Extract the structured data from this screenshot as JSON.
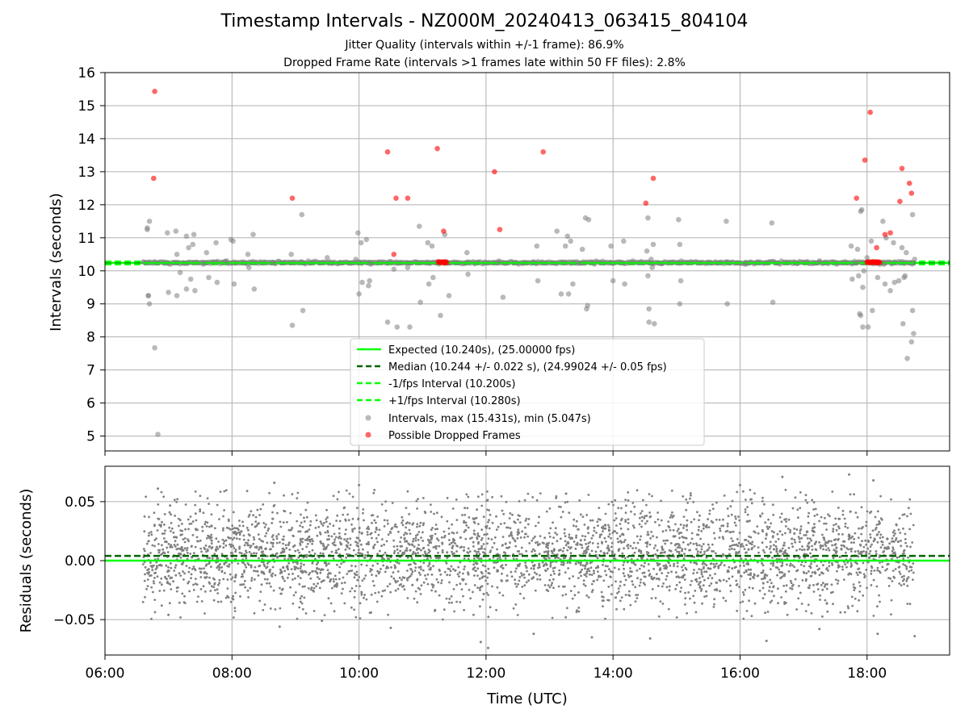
{
  "title": "Timestamp Intervals - NZ000M_20240413_063415_804104",
  "subtitle_lines": [
    "Jitter Quality (intervals within +/-1 frame): 86.9%",
    "Dropped Frame Rate (intervals >1 frames late within 50 FF files): 2.8%"
  ],
  "colors": {
    "expected": "#00ff00",
    "median": "#006400",
    "interval_points": "#808080",
    "dropped_points": "#ff0000",
    "grid": "#b0b0b0"
  },
  "chart_data": [
    {
      "type": "scatter",
      "panel": "intervals",
      "xlabel": "",
      "ylabel": "Intervals (seconds)",
      "xlim": [
        "06:00",
        "19:18"
      ],
      "ylim": [
        4.55,
        16.0
      ],
      "yticks": [
        5,
        6,
        7,
        8,
        9,
        10,
        11,
        12,
        13,
        14,
        15,
        16
      ],
      "grid": true,
      "lines": [
        {
          "name": "Expected (10.240s), (25.00000 fps)",
          "y": 10.24,
          "style": "solid",
          "color": "#00ff00"
        },
        {
          "name": "Median (10.244 +/- 0.022 s), (24.99024 +/- 0.05 fps)",
          "y": 10.244,
          "style": "dashed",
          "color": "#006400"
        },
        {
          "name": "-1/fps Interval (10.200s)",
          "y": 10.2,
          "style": "dashed",
          "color": "#00ff00"
        },
        {
          "name": "+1/fps Interval (10.280s)",
          "y": 10.28,
          "style": "dashed",
          "color": "#00ff00"
        }
      ],
      "series": [
        {
          "name": "Intervals, max (15.431s), min (5.047s)",
          "color": "#808080",
          "band": {
            "x_start": "06:36",
            "x_end": "18:44",
            "y": 10.25
          },
          "points": [
            [
              "06:40",
              11.25
            ],
            [
              "06:40",
              11.3
            ],
            [
              "06:41",
              9.25
            ],
            [
              "06:41",
              9.25
            ],
            [
              "06:42",
              11.5
            ],
            [
              "06:42",
              9.0
            ],
            [
              "06:47",
              7.67
            ],
            [
              "06:50",
              5.05
            ],
            [
              "06:59",
              11.15
            ],
            [
              "07:00",
              9.35
            ],
            [
              "07:07",
              11.2
            ],
            [
              "07:08",
              10.5
            ],
            [
              "07:08",
              9.25
            ],
            [
              "07:11",
              9.95
            ],
            [
              "07:17",
              11.05
            ],
            [
              "07:17",
              9.45
            ],
            [
              "07:19",
              10.7
            ],
            [
              "07:21",
              9.75
            ],
            [
              "07:23",
              10.8
            ],
            [
              "07:24",
              11.1
            ],
            [
              "07:25",
              9.4
            ],
            [
              "07:33",
              10.2
            ],
            [
              "07:36",
              10.55
            ],
            [
              "07:38",
              9.8
            ],
            [
              "07:45",
              10.85
            ],
            [
              "07:46",
              9.65
            ],
            [
              "07:55",
              10.3
            ],
            [
              "07:59",
              10.95
            ],
            [
              "08:01",
              10.9
            ],
            [
              "08:02",
              9.6
            ],
            [
              "08:15",
              10.5
            ],
            [
              "08:16",
              10.1
            ],
            [
              "08:20",
              11.1
            ],
            [
              "08:21",
              9.45
            ],
            [
              "08:39",
              10.25
            ],
            [
              "08:56",
              10.5
            ],
            [
              "08:57",
              8.35
            ],
            [
              "09:06",
              11.7
            ],
            [
              "09:07",
              8.8
            ],
            [
              "09:30",
              10.4
            ],
            [
              "09:57",
              10.35
            ],
            [
              "09:59",
              11.15
            ],
            [
              "10:00",
              9.3
            ],
            [
              "10:02",
              10.85
            ],
            [
              "10:03",
              9.65
            ],
            [
              "10:07",
              10.95
            ],
            [
              "10:09",
              9.55
            ],
            [
              "10:10",
              9.7
            ],
            [
              "10:11",
              10.2
            ],
            [
              "10:27",
              8.45
            ],
            [
              "10:33",
              10.05
            ],
            [
              "10:36",
              8.3
            ],
            [
              "10:46",
              10.1
            ],
            [
              "10:48",
              8.3
            ],
            [
              "10:57",
              11.35
            ],
            [
              "10:58",
              9.05
            ],
            [
              "11:05",
              10.85
            ],
            [
              "11:06",
              9.6
            ],
            [
              "11:09",
              10.75
            ],
            [
              "11:10",
              9.8
            ],
            [
              "11:17",
              8.65
            ],
            [
              "11:21",
              11.1
            ],
            [
              "11:25",
              9.25
            ],
            [
              "11:42",
              10.55
            ],
            [
              "11:43",
              9.9
            ],
            [
              "12:12",
              10.3
            ],
            [
              "12:16",
              9.2
            ],
            [
              "12:48",
              10.75
            ],
            [
              "12:49",
              9.7
            ],
            [
              "13:07",
              11.2
            ],
            [
              "13:11",
              9.3
            ],
            [
              "13:15",
              10.75
            ],
            [
              "13:17",
              11.05
            ],
            [
              "13:18",
              9.3
            ],
            [
              "13:20",
              10.9
            ],
            [
              "13:22",
              9.6
            ],
            [
              "13:27",
              10.25
            ],
            [
              "13:31",
              10.65
            ],
            [
              "13:34",
              11.6
            ],
            [
              "13:35",
              8.85
            ],
            [
              "13:36",
              8.95
            ],
            [
              "13:37",
              11.55
            ],
            [
              "13:58",
              10.75
            ],
            [
              "14:00",
              9.7
            ],
            [
              "14:10",
              10.9
            ],
            [
              "14:11",
              9.6
            ],
            [
              "14:32",
              10.6
            ],
            [
              "14:33",
              9.85
            ],
            [
              "14:33",
              11.6
            ],
            [
              "14:34",
              8.85
            ],
            [
              "14:34",
              8.45
            ],
            [
              "14:36",
              10.35
            ],
            [
              "14:37",
              10.1
            ],
            [
              "14:38",
              10.8
            ],
            [
              "14:39",
              8.4
            ],
            [
              "15:02",
              11.55
            ],
            [
              "15:03",
              10.8
            ],
            [
              "15:04",
              9.7
            ],
            [
              "15:03",
              9.0
            ],
            [
              "15:47",
              11.5
            ],
            [
              "15:48",
              9.0
            ],
            [
              "16:05",
              10.2
            ],
            [
              "16:30",
              11.45
            ],
            [
              "16:31",
              9.05
            ],
            [
              "17:15",
              10.3
            ],
            [
              "17:45",
              10.75
            ],
            [
              "17:46",
              9.75
            ],
            [
              "17:50",
              10.25
            ],
            [
              "17:51",
              10.65
            ],
            [
              "17:52",
              9.85
            ],
            [
              "17:53",
              8.7
            ],
            [
              "17:54",
              11.8
            ],
            [
              "17:54",
              8.65
            ],
            [
              "17:55",
              11.85
            ],
            [
              "17:56",
              9.5
            ],
            [
              "17:56",
              8.3
            ],
            [
              "17:57",
              10.0
            ],
            [
              "18:00",
              10.4
            ],
            [
              "18:01",
              8.3
            ],
            [
              "18:04",
              10.9
            ],
            [
              "18:05",
              8.8
            ],
            [
              "18:10",
              9.8
            ],
            [
              "18:12",
              10.2
            ],
            [
              "18:15",
              11.5
            ],
            [
              "18:16",
              10.2
            ],
            [
              "18:17",
              9.6
            ],
            [
              "18:18",
              11.0
            ],
            [
              "18:22",
              9.4
            ],
            [
              "18:25",
              10.85
            ],
            [
              "18:26",
              9.65
            ],
            [
              "18:30",
              9.7
            ],
            [
              "18:33",
              10.7
            ],
            [
              "18:34",
              8.4
            ],
            [
              "18:35",
              9.8
            ],
            [
              "18:36",
              9.85
            ],
            [
              "18:37",
              10.55
            ],
            [
              "18:38",
              7.35
            ],
            [
              "18:42",
              7.85
            ],
            [
              "18:43",
              8.8
            ],
            [
              "18:43",
              11.7
            ],
            [
              "18:44",
              8.1
            ],
            [
              "18:45",
              10.35
            ]
          ]
        },
        {
          "name": "Possible Dropped Frames",
          "color": "#ff0000",
          "clusters": [
            {
              "x_start": "11:15",
              "x_end": "11:23",
              "y": 10.26
            },
            {
              "x_start": "18:00",
              "x_end": "18:12",
              "y": 10.26
            }
          ],
          "points": [
            [
              "06:47",
              15.43
            ],
            [
              "06:46",
              12.8
            ],
            [
              "08:57",
              12.2
            ],
            [
              "10:27",
              13.6
            ],
            [
              "10:33",
              10.5
            ],
            [
              "10:35",
              12.2
            ],
            [
              "10:46",
              12.2
            ],
            [
              "11:14",
              13.7
            ],
            [
              "11:20",
              11.2
            ],
            [
              "12:08",
              13.0
            ],
            [
              "12:13",
              11.25
            ],
            [
              "12:54",
              13.6
            ],
            [
              "14:31",
              12.05
            ],
            [
              "14:38",
              12.8
            ],
            [
              "17:50",
              12.2
            ],
            [
              "17:58",
              13.35
            ],
            [
              "18:03",
              14.8
            ],
            [
              "18:09",
              10.7
            ],
            [
              "18:17",
              11.1
            ],
            [
              "18:22",
              11.15
            ],
            [
              "18:31",
              12.1
            ],
            [
              "18:33",
              13.1
            ],
            [
              "18:40",
              12.65
            ],
            [
              "18:42",
              12.35
            ]
          ]
        }
      ],
      "legend": {
        "placement": "lower-center"
      }
    },
    {
      "type": "scatter",
      "panel": "residuals",
      "xlabel": "Time (UTC)",
      "ylabel": "Residuals (seconds)",
      "xlim": [
        "06:00",
        "19:18"
      ],
      "ylim": [
        -0.08,
        0.08
      ],
      "yticks": [
        -0.05,
        0.0,
        0.05
      ],
      "ytick_labels": [
        "−0.05",
        "0.00",
        "0.05"
      ],
      "xticks": [
        "06:00",
        "08:00",
        "10:00",
        "12:00",
        "14:00",
        "16:00",
        "18:00"
      ],
      "grid": true,
      "lines": [
        {
          "name": "Expected",
          "y": 0.0,
          "style": "solid",
          "color": "#00ff00"
        },
        {
          "name": "Median",
          "y": 0.004,
          "style": "dashed",
          "color": "#006400"
        }
      ],
      "series": [
        {
          "name": "Residuals",
          "color": "#808080",
          "x_range": [
            "06:36",
            "18:44"
          ],
          "center": 0.005,
          "spread": 0.022,
          "approx_point_count": 3600,
          "sample_points": [
            [
              "06:50",
              0.061
            ],
            [
              "07:00",
              -0.046
            ],
            [
              "08:40",
              0.066
            ],
            [
              "08:45",
              -0.056
            ],
            [
              "09:25",
              -0.051
            ],
            [
              "10:00",
              0.064
            ],
            [
              "10:30",
              -0.057
            ],
            [
              "11:55",
              -0.069
            ],
            [
              "12:02",
              -0.074
            ],
            [
              "13:40",
              -0.065
            ],
            [
              "14:35",
              -0.066
            ],
            [
              "16:00",
              0.064
            ],
            [
              "16:25",
              -0.068
            ],
            [
              "16:40",
              0.071
            ],
            [
              "17:43",
              0.073
            ],
            [
              "18:06",
              0.068
            ],
            [
              "18:10",
              -0.062
            ],
            [
              "18:45",
              -0.064
            ],
            [
              "17:15",
              -0.058
            ],
            [
              "12:45",
              -0.062
            ]
          ]
        }
      ]
    }
  ]
}
